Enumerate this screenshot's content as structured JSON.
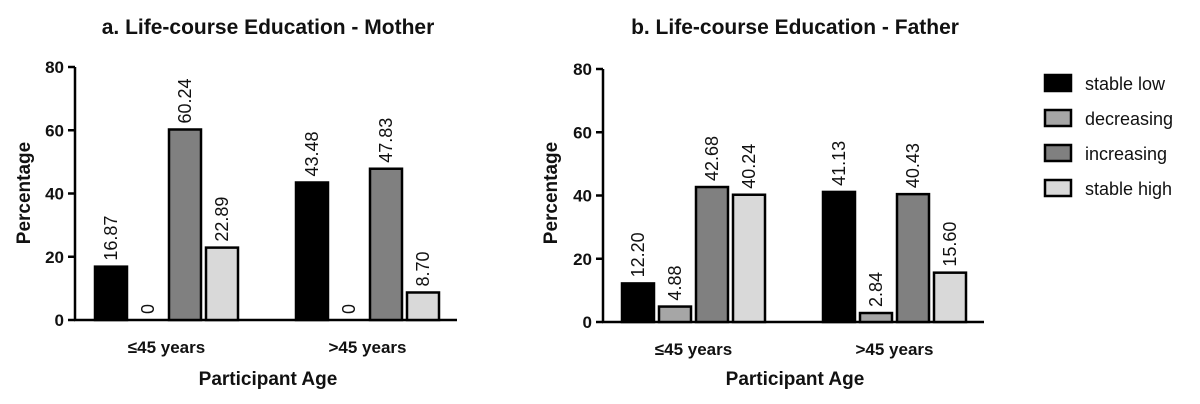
{
  "colors": {
    "stable low": "#000000",
    "decreasing": "#a6a6a6",
    "increasing": "#808080",
    "stable high": "#d9d9d9",
    "outline": "#000000"
  },
  "legend": {
    "items": [
      "stable low",
      "decreasing",
      "increasing",
      "stable high"
    ]
  },
  "chart_data": [
    {
      "type": "bar",
      "title": "a. Life-course Education - Mother",
      "xlabel": "Participant Age",
      "ylabel": "Percentage",
      "ylim": [
        0,
        80
      ],
      "yticks": [
        0,
        20,
        40,
        60,
        80
      ],
      "categories": [
        "≤45 years",
        ">45 years"
      ],
      "series": [
        {
          "name": "stable low",
          "values": [
            16.87,
            43.48
          ],
          "labels": [
            "16.87",
            "43.48"
          ]
        },
        {
          "name": "decreasing",
          "values": [
            0,
            0
          ],
          "labels": [
            "0",
            "0"
          ]
        },
        {
          "name": "increasing",
          "values": [
            60.24,
            47.83
          ],
          "labels": [
            "60.24",
            "47.83"
          ]
        },
        {
          "name": "stable high",
          "values": [
            22.89,
            8.7
          ],
          "labels": [
            "22.89",
            "8.70"
          ]
        }
      ]
    },
    {
      "type": "bar",
      "title": "b. Life-course Education - Father",
      "xlabel": "Participant Age",
      "ylabel": "Percentage",
      "ylim": [
        0,
        80
      ],
      "yticks": [
        0,
        20,
        40,
        60,
        80
      ],
      "categories": [
        "≤45 years",
        ">45 years"
      ],
      "series": [
        {
          "name": "stable low",
          "values": [
            12.2,
            41.13
          ],
          "labels": [
            "12.20",
            "41.13"
          ]
        },
        {
          "name": "decreasing",
          "values": [
            4.88,
            2.84
          ],
          "labels": [
            "4.88",
            "2.84"
          ]
        },
        {
          "name": "increasing",
          "values": [
            42.68,
            40.43
          ],
          "labels": [
            "42.68",
            "40.43"
          ]
        },
        {
          "name": "stable high",
          "values": [
            40.24,
            15.6
          ],
          "labels": [
            "40.24",
            "15.60"
          ]
        }
      ]
    }
  ]
}
